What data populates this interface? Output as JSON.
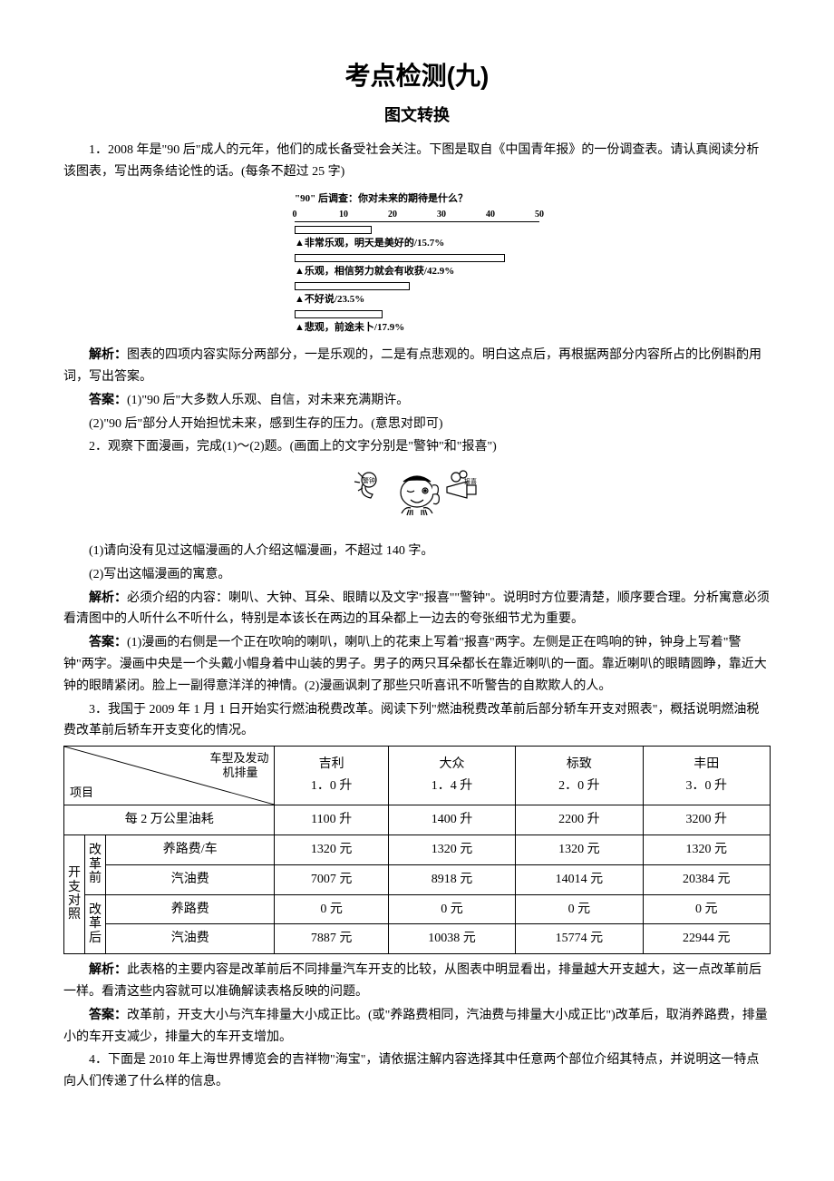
{
  "title": "考点检测(九)",
  "subtitle": "图文转换",
  "q1": {
    "text": "1．2008 年是\"90 后\"成人的元年，他们的成长备受社会关注。下图是取自《中国青年报》的一份调查表。请认真阅读分析该图表，写出两条结论性的话。(每条不超过 25 字)",
    "chart": {
      "title": "\"90\" 后调查：你对未来的期待是什么？",
      "axis_max": 50,
      "ticks": [
        0,
        10,
        20,
        30,
        40,
        50
      ],
      "bars": [
        {
          "value": 15.7,
          "label": "▲非常乐观，明天是美好的/15.7%"
        },
        {
          "value": 42.9,
          "label": "▲乐观，相信努力就会有收获/42.9%"
        },
        {
          "value": 23.5,
          "label": "▲不好说/23.5%"
        },
        {
          "value": 17.9,
          "label": "▲悲观，前途未卜/17.9%"
        }
      ]
    },
    "analysis_label": "解析：",
    "analysis": "图表的四项内容实际分两部分，一是乐观的，二是有点悲观的。明白这点后，再根据两部分内容所占的比例斟酌用词，写出答案。",
    "answer_label": "答案：",
    "answer1": "(1)\"90 后\"大多数人乐观、自信，对未来充满期许。",
    "answer2": "(2)\"90 后\"部分人开始担忧未来，感到生存的压力。(意思对即可)"
  },
  "q2": {
    "text": "2．观察下面漫画，完成(1)～(2)题。(画面上的文字分别是\"警钟\"和\"报喜\")",
    "left_label": "警钟",
    "right_label": "报喜",
    "sub1": "(1)请向没有见过这幅漫画的人介绍这幅漫画，不超过 140 字。",
    "sub2": "(2)写出这幅漫画的寓意。",
    "analysis_label": "解析：",
    "analysis": "必须介绍的内容：喇叭、大钟、耳朵、眼睛以及文字\"报喜\"\"警钟\"。说明时方位要清楚，顺序要合理。分析寓意必须看清图中的人听什么不听什么，特别是本该长在两边的耳朵都上一边去的夸张细节尤为重要。",
    "answer_label": "答案：",
    "answer": "(1)漫画的右侧是一个正在吹响的喇叭，喇叭上的花束上写着\"报喜\"两字。左侧是正在鸣响的钟，钟身上写着\"警钟\"两字。漫画中央是一个头戴小帽身着中山装的男子。男子的两只耳朵都长在靠近喇叭的一面。靠近喇叭的眼睛圆睁，靠近大钟的眼睛紧闭。脸上一副得意洋洋的神情。(2)漫画讽刺了那些只听喜讯不听警告的自欺欺人的人。"
  },
  "q3": {
    "text": "3．我国于 2009 年 1 月 1 日开始实行燃油税费改革。阅读下列\"燃油税费改革前后部分轿车开支对照表\"，概括说明燃油税费改革前后轿车开支变化的情况。",
    "table": {
      "diag_top": "车型及发动",
      "diag_mid": "机排量",
      "diag_bot": "项目",
      "brands": [
        {
          "name": "吉利",
          "liter": "1．0 升"
        },
        {
          "name": "大众",
          "liter": "1．4 升"
        },
        {
          "name": "标致",
          "liter": "2．0 升"
        },
        {
          "name": "丰田",
          "liter": "3．0 升"
        }
      ],
      "fuel_row_label": "每 2 万公里油耗",
      "fuel_row": [
        "1100 升",
        "1400 升",
        "2200 升",
        "3200 升"
      ],
      "group_label": "开支对照",
      "before_label": "改革前",
      "after_label": "改革后",
      "road_fee_label": "养路费/车",
      "road_fee_label2": "养路费",
      "gas_fee_label": "汽油费",
      "before_road": [
        "1320 元",
        "1320 元",
        "1320 元",
        "1320 元"
      ],
      "before_gas": [
        "7007 元",
        "8918 元",
        "14014 元",
        "20384 元"
      ],
      "after_road": [
        "0 元",
        "0 元",
        "0 元",
        "0 元"
      ],
      "after_gas": [
        "7887 元",
        "10038 元",
        "15774 元",
        "22944 元"
      ]
    },
    "analysis_label": "解析：",
    "analysis": "此表格的主要内容是改革前后不同排量汽车开支的比较，从图表中明显看出，排量越大开支越大，这一点改革前后一样。看清这些内容就可以准确解读表格反映的问题。",
    "answer_label": "答案：",
    "answer": "改革前，开支大小与汽车排量大小成正比。(或\"养路费相同，汽油费与排量大小成正比\")改革后，取消养路费，排量小的车开支减少，排量大的车开支增加。"
  },
  "q4": {
    "text": "4．下面是 2010 年上海世界博览会的吉祥物\"海宝\"，请依据注解内容选择其中任意两个部位介绍其特点，并说明这一特点向人们传递了什么样的信息。"
  }
}
